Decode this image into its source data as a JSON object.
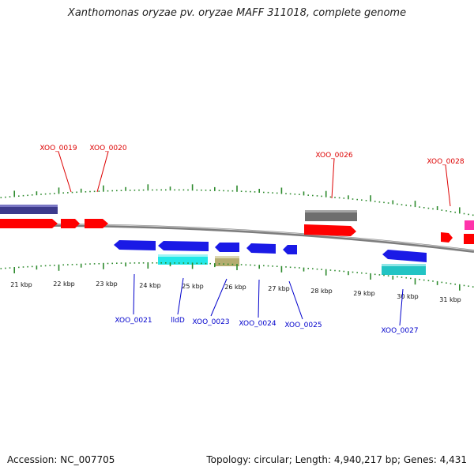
{
  "title": "Xanthomonas oryzae pv. oryzae MAFF 311018, complete genome",
  "footer": {
    "accession": "Accession: NC_007705",
    "summary": "Topology: circular; Length: 4,940,217 bp; Genes: 4,431"
  },
  "colors": {
    "backbone": "#8a8a8a",
    "ticks": "#2d8a2d",
    "label_top": "#dd0000",
    "label_bottom": "#0000cc"
  },
  "scale_labels": [
    "21 kbp",
    "22 kbp",
    "23 kbp",
    "24 kbp",
    "25 kbp",
    "26 kbp",
    "27 kbp",
    "28 kbp",
    "29 kbp",
    "30 kbp",
    "31 kbp"
  ],
  "gene_labels_top": [
    "XOO_0019",
    "XOO_0020",
    "XOO_0026",
    "XOO_0028"
  ],
  "gene_labels_bottom": [
    "XOO_0021",
    "lldD",
    "XOO_0023",
    "XOO_0024",
    "XOO_0025",
    "XOO_0027"
  ],
  "feature_colors": {
    "red": "#ff0000",
    "navy": "#3d3a8c",
    "grey": "#6e6e6e",
    "magenta": "#ff33aa",
    "blue": "#1a1ae6",
    "cyan": "#22e8e8",
    "teal": "#22c4c4",
    "olive": "#b5ad70"
  }
}
